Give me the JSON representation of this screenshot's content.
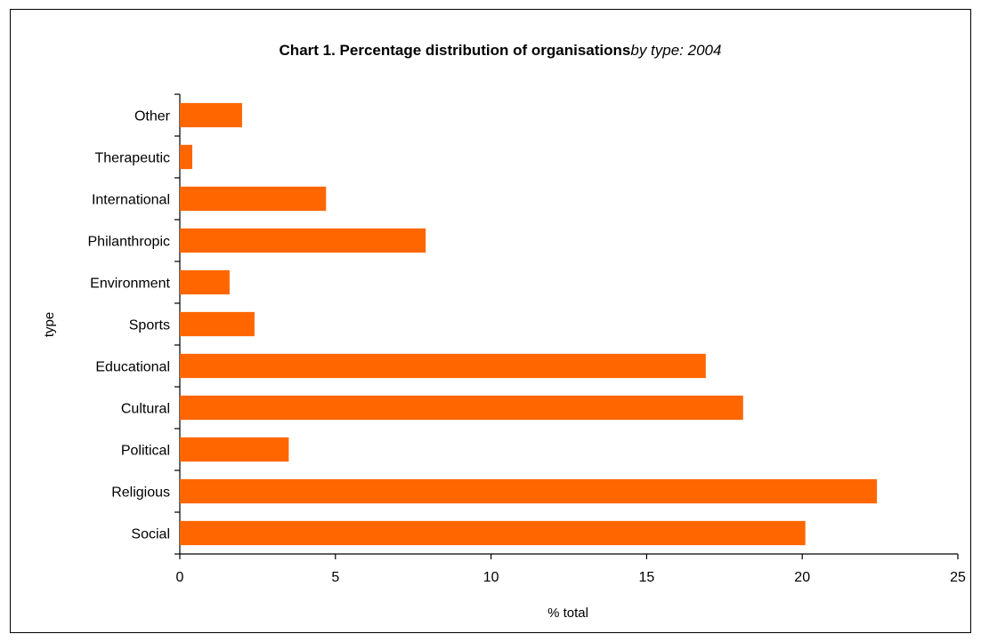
{
  "chart_data": {
    "type": "bar",
    "orientation": "horizontal",
    "title": "Chart 1. Percentage distribution of organisations",
    "subtitle": "by type: 2004",
    "xlabel": "% total",
    "ylabel": "type",
    "xlim": [
      0,
      25
    ],
    "xticks": [
      "0",
      "5",
      "10",
      "15",
      "20",
      "25"
    ],
    "categories": [
      "Social",
      "Religious",
      "Political",
      "Cultural",
      "Educational",
      "Sports",
      "Environment",
      "Philanthropic",
      "International",
      "Therapeutic",
      "Other"
    ],
    "values": [
      20.1,
      22.4,
      3.5,
      18.1,
      16.9,
      2.4,
      1.6,
      7.9,
      4.7,
      0.4,
      2.0
    ],
    "bar_color": "#FF6600",
    "grid": false,
    "legend": "none"
  }
}
